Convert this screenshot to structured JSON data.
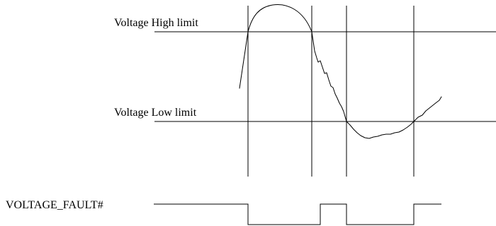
{
  "labels": {
    "high_limit": "Voltage High limit",
    "low_limit": "Voltage Low limit",
    "fault_signal": "VOLTAGE_FAULT#"
  },
  "colors": {
    "ink": "#000000",
    "background": "#ffffff"
  }
}
